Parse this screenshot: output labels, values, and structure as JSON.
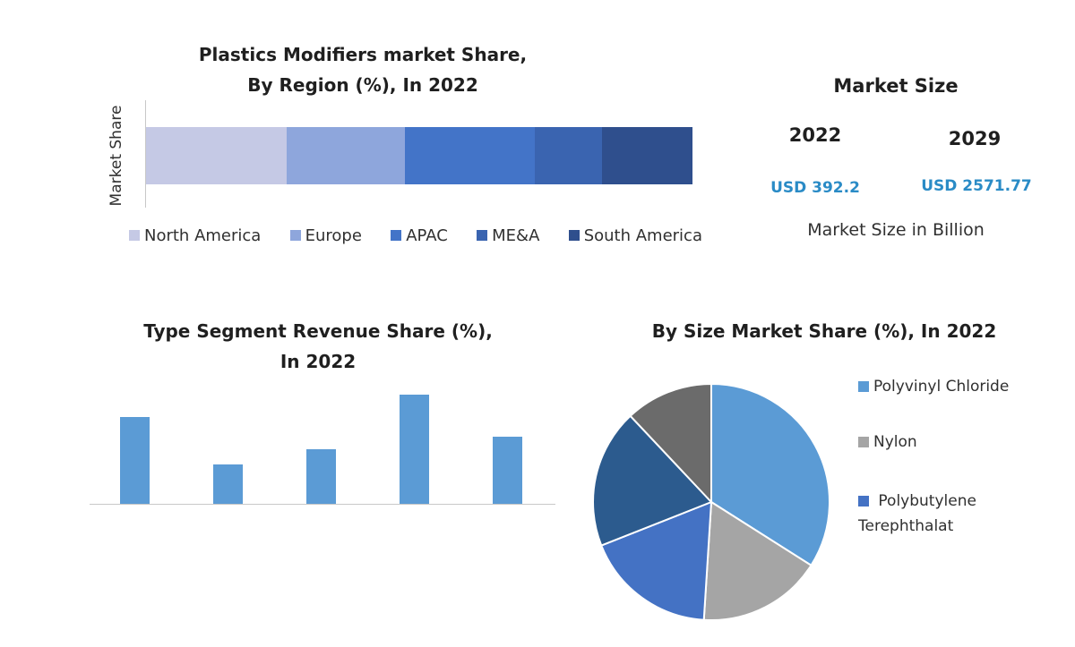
{
  "colors": {
    "region": [
      "#c5c9e5",
      "#8ea6dc",
      "#4374c8",
      "#3a64b0",
      "#2f4f8d"
    ],
    "type_bar": "#5b9bd5",
    "size_pie": [
      "#5b9bd5",
      "#a5a5a5",
      "#4472c4",
      "#2c5b8e",
      "#6b6b6b"
    ],
    "usd": "#2a8bc6"
  },
  "region": {
    "title_line1": "Plastics Modifiers market Share,",
    "title_line2": "By Region (%), In 2022",
    "ylabel": "Market Share"
  },
  "market_size": {
    "title": "Market Size",
    "year1": "2022",
    "year2": "2029",
    "value1": "USD 392.2",
    "value2": "USD 2571.77",
    "caption": "Market Size in Billion"
  },
  "type": {
    "title_line1": "Type Segment Revenue Share (%),",
    "title_line2": "In 2022"
  },
  "size": {
    "title": "By Size Market Share (%), In 2022"
  },
  "chart_data": [
    {
      "type": "bar",
      "orientation": "horizontal-stacked",
      "title": "Plastics Modifiers market Share, By Region (%), In 2022",
      "ylabel": "Market Share",
      "legend": "bottom",
      "series": [
        {
          "name": "North America",
          "values": [
            25
          ]
        },
        {
          "name": "Europe",
          "values": [
            21
          ]
        },
        {
          "name": "APAC",
          "values": [
            23
          ]
        },
        {
          "name": "ME&A",
          "values": [
            12
          ]
        },
        {
          "name": "South America",
          "values": [
            16
          ]
        }
      ]
    },
    {
      "type": "bar",
      "title": "Type Segment Revenue Share (%), In 2022",
      "categories": [
        "",
        "",
        "",
        "",
        ""
      ],
      "values": [
        35,
        16,
        22,
        44,
        27
      ],
      "ylim": [
        0,
        48
      ]
    },
    {
      "type": "pie",
      "title": "By Size Market Share (%), In 2022",
      "legend": "right",
      "labels": [
        "Polyvinyl Chloride",
        "Nylon",
        "Polybutylene Terephthalat",
        "",
        ""
      ],
      "values": [
        34,
        17,
        18,
        19,
        12
      ]
    }
  ]
}
